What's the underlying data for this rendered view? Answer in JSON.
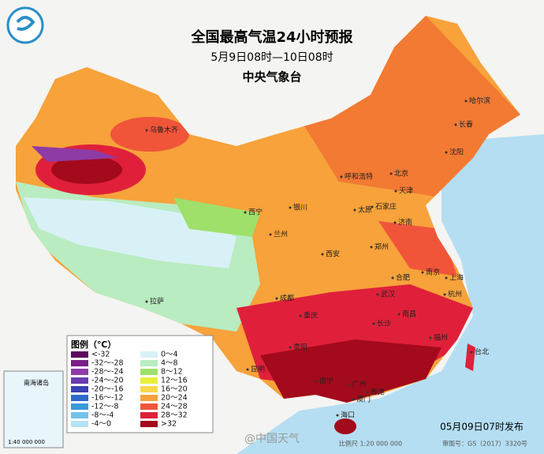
{
  "header": {
    "title": "全国最高气温24小时预报",
    "subtitle": "5月9日08时—10日08时",
    "issuer": "中央气象台"
  },
  "legend": {
    "title": "图例（℃）",
    "items": [
      {
        "label": "<-32",
        "color": "#5b0a5e"
      },
      {
        "label": "-32～-28",
        "color": "#7a1f86"
      },
      {
        "label": "-28～-24",
        "color": "#8e3ba6"
      },
      {
        "label": "-24～-20",
        "color": "#6a3bb0"
      },
      {
        "label": "-20～-16",
        "color": "#3a3fb4"
      },
      {
        "label": "-16～-12",
        "color": "#2f69c9"
      },
      {
        "label": "-12～-8",
        "color": "#3a9ad9"
      },
      {
        "label": "-8～-4",
        "color": "#72c2ea"
      },
      {
        "label": "-4～0",
        "color": "#b4e3f3"
      },
      {
        "label": "0～4",
        "color": "#d8f1f6"
      },
      {
        "label": "4～8",
        "color": "#b9ecc0"
      },
      {
        "label": "8～12",
        "color": "#9ee06a"
      },
      {
        "label": "12～16",
        "color": "#e8ef3c"
      },
      {
        "label": "16～20",
        "color": "#f7d74a"
      },
      {
        "label": "20～24",
        "color": "#f7a23a"
      },
      {
        "label": "24～28",
        "color": "#f0553a"
      },
      {
        "label": "28～32",
        "color": "#e0203a"
      },
      {
        "label": ">32",
        "color": "#a30a1c"
      }
    ]
  },
  "cities": [
    "乌鲁木齐",
    "哈尔滨",
    "长春",
    "沈阳",
    "呼和浩特",
    "北京",
    "天津",
    "石家庄",
    "太原",
    "济南",
    "银川",
    "西宁",
    "兰州",
    "西安",
    "郑州",
    "合肥",
    "南京",
    "上海",
    "杭州",
    "武汉",
    "成都",
    "重庆",
    "长沙",
    "南昌",
    "福州",
    "台北",
    "拉萨",
    "贵阳",
    "昆明",
    "南宁",
    "广州",
    "香港",
    "澳门",
    "海口"
  ],
  "inset": {
    "title": "南海诸岛",
    "scale": "1:40 000 000"
  },
  "footer": {
    "issued": "05月09日07时发布",
    "watermark": "@中国天气",
    "scale": "比例尺 1:20 000 000",
    "approval": "审图号：GS（2017）3320号"
  }
}
